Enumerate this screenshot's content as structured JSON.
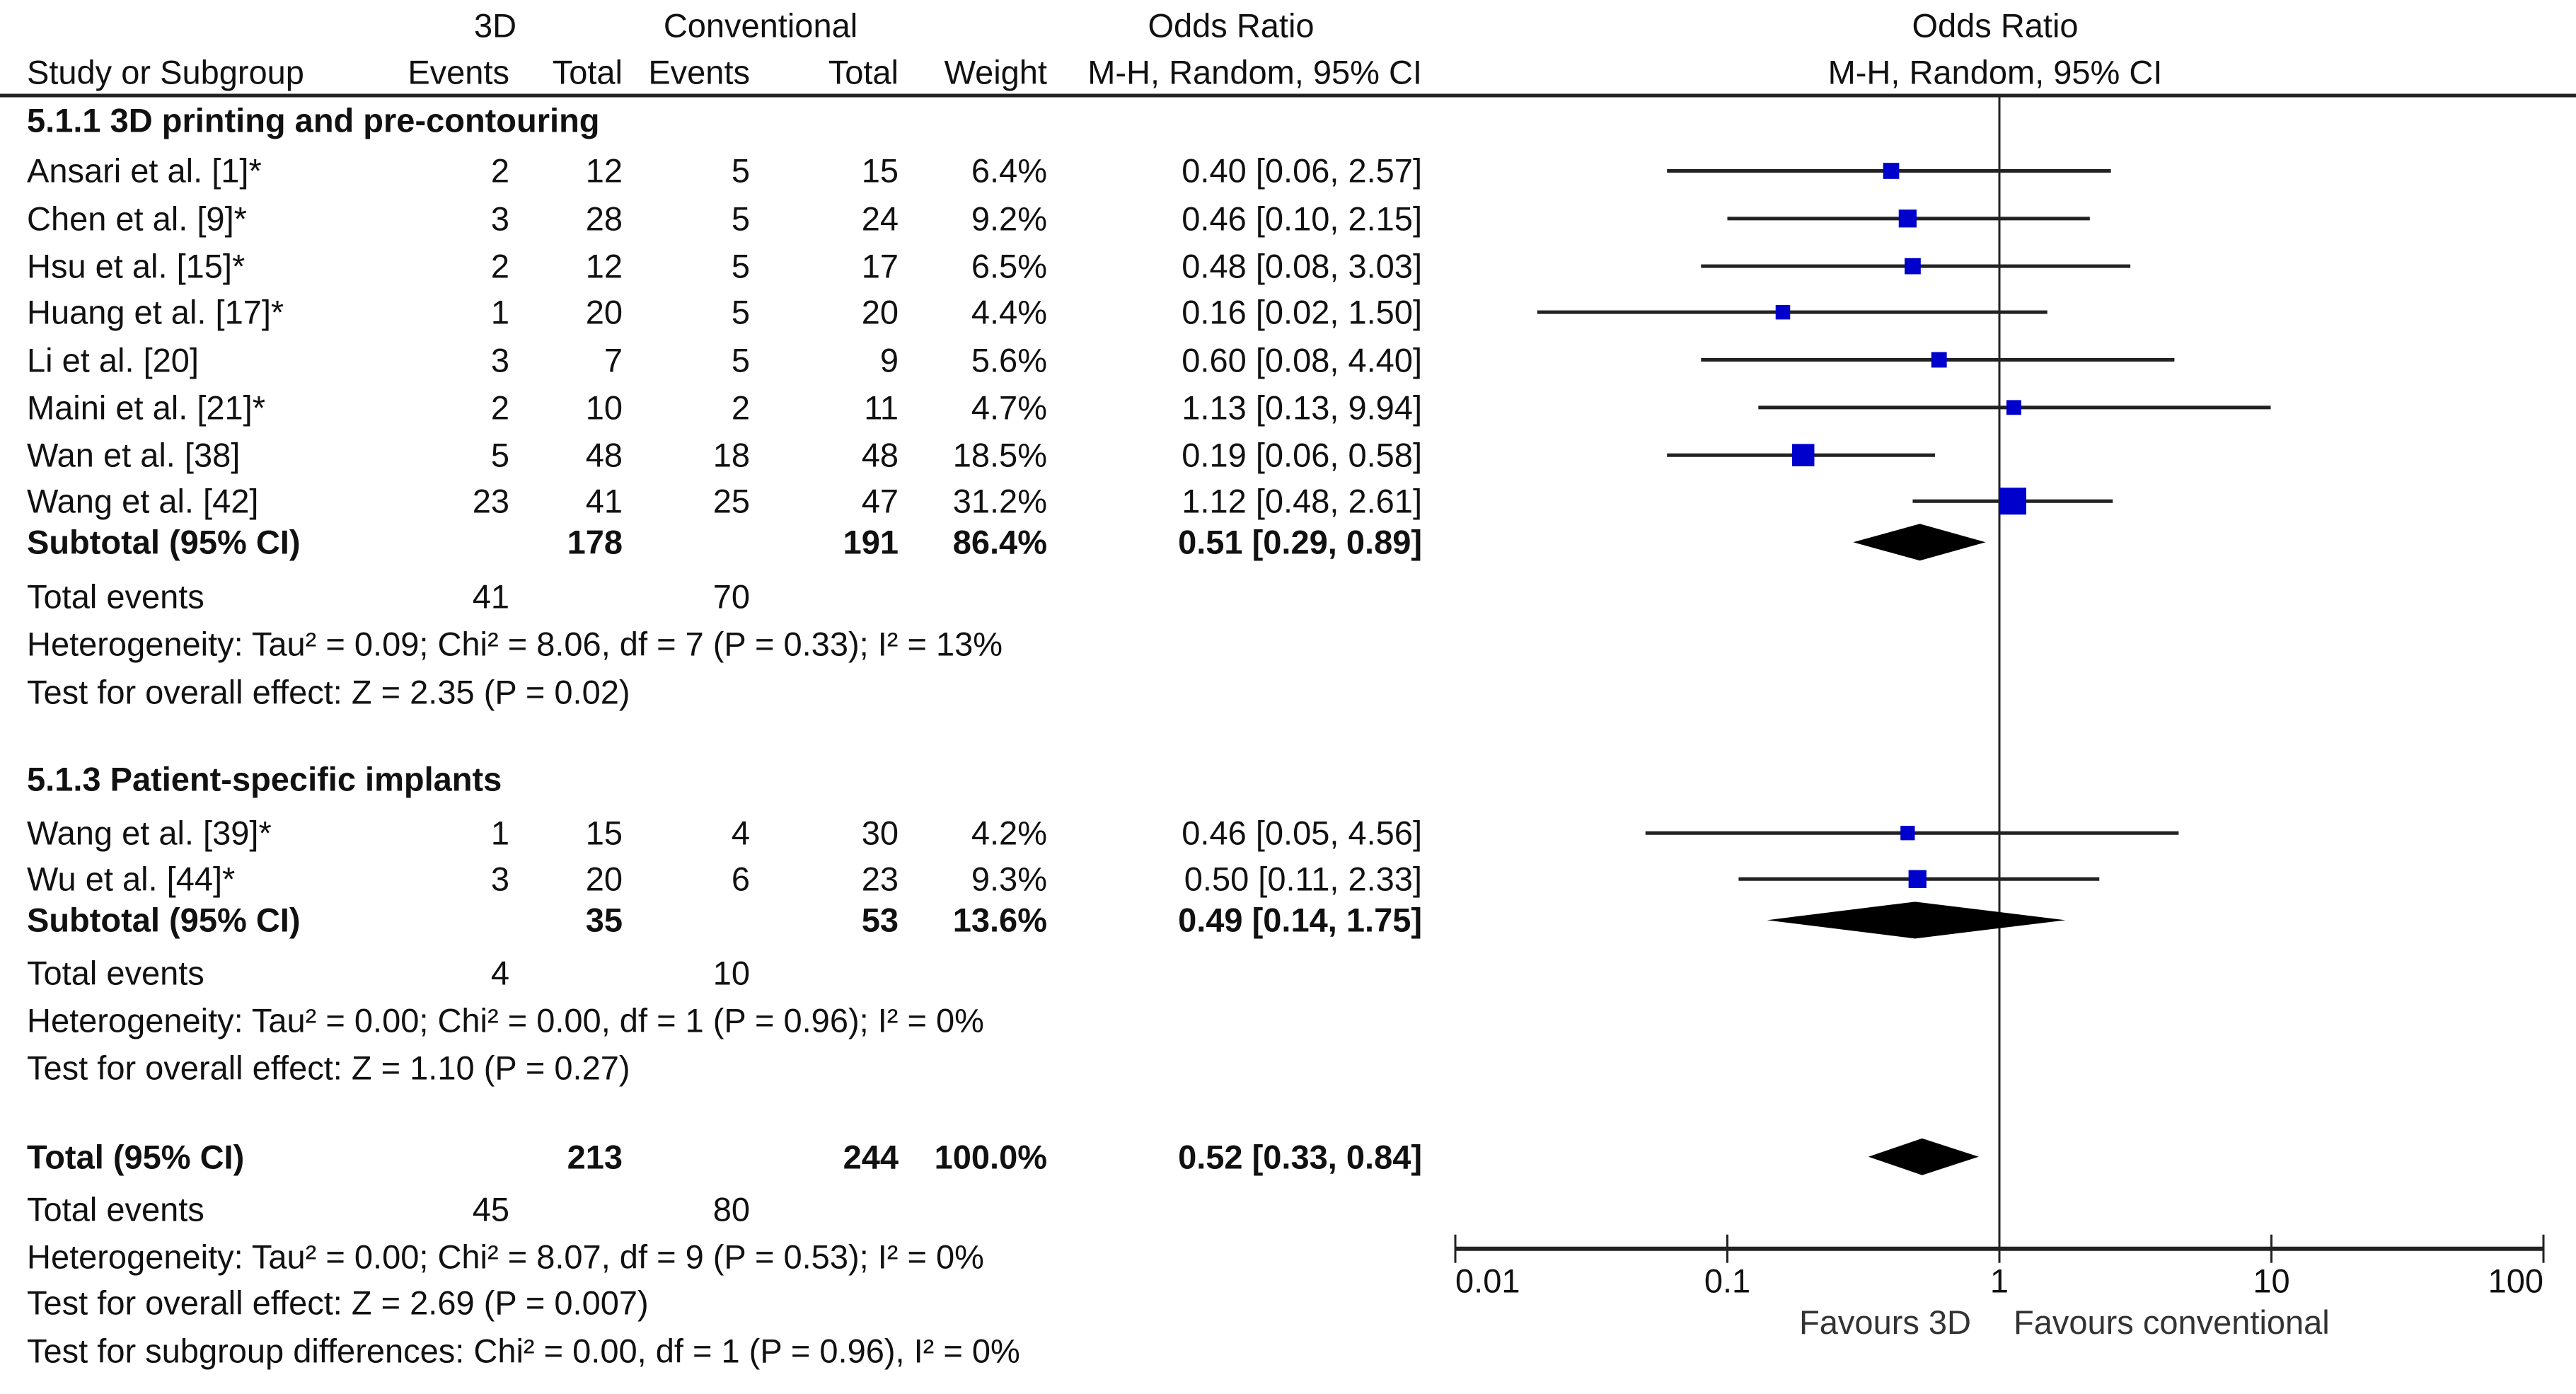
{
  "header": {
    "group1": "3D",
    "group2": "Conventional",
    "or_title": "Odds Ratio",
    "or_method": "M-H, Random, 95% CI",
    "plot_title": "Odds Ratio",
    "plot_method": "M-H, Random, 95% CI",
    "col_study": "Study or Subgroup",
    "col_events1": "Events",
    "col_total1": "Total",
    "col_events2": "Events",
    "col_total2": "Total",
    "col_weight": "Weight"
  },
  "subgroups": [
    {
      "title": "5.1.1 3D printing and pre-contouring",
      "studies": [
        {
          "name": "Ansari et al. [1]*",
          "e1": "2",
          "n1": "12",
          "e2": "5",
          "n2": "15",
          "weight": "6.4%",
          "ci_text": "0.40 [0.06, 2.57]"
        },
        {
          "name": "Chen et al. [9]*",
          "e1": "3",
          "n1": "28",
          "e2": "5",
          "n2": "24",
          "weight": "9.2%",
          "ci_text": "0.46 [0.10, 2.15]"
        },
        {
          "name": "Hsu et al. [15]*",
          "e1": "2",
          "n1": "12",
          "e2": "5",
          "n2": "17",
          "weight": "6.5%",
          "ci_text": "0.48 [0.08, 3.03]"
        },
        {
          "name": "Huang et al. [17]*",
          "e1": "1",
          "n1": "20",
          "e2": "5",
          "n2": "20",
          "weight": "4.4%",
          "ci_text": "0.16 [0.02, 1.50]"
        },
        {
          "name": "Li et al. [20]",
          "e1": "3",
          "n1": "7",
          "e2": "5",
          "n2": "9",
          "weight": "5.6%",
          "ci_text": "0.60 [0.08, 4.40]"
        },
        {
          "name": "Maini et al. [21]*",
          "e1": "2",
          "n1": "10",
          "e2": "2",
          "n2": "11",
          "weight": "4.7%",
          "ci_text": "1.13 [0.13, 9.94]"
        },
        {
          "name": "Wan et al. [38]",
          "e1": "5",
          "n1": "48",
          "e2": "18",
          "n2": "48",
          "weight": "18.5%",
          "ci_text": "0.19 [0.06, 0.58]"
        },
        {
          "name": "Wang et al. [42]",
          "e1": "23",
          "n1": "41",
          "e2": "25",
          "n2": "47",
          "weight": "31.2%",
          "ci_text": "1.12 [0.48, 2.61]"
        }
      ],
      "subtotal": {
        "label": "Subtotal (95% CI)",
        "n1": "178",
        "n2": "191",
        "weight": "86.4%",
        "ci_text": "0.51 [0.29, 0.89]"
      },
      "total_events": {
        "label": "Total events",
        "e1": "41",
        "e2": "70"
      },
      "heterogeneity": "Heterogeneity: Tau² = 0.09; Chi² = 8.06, df = 7 (P = 0.33); I² = 13%",
      "overall_effect": "Test for overall effect: Z = 2.35 (P = 0.02)"
    },
    {
      "title": "5.1.3 Patient-specific implants",
      "studies": [
        {
          "name": "Wang et al. [39]*",
          "e1": "1",
          "n1": "15",
          "e2": "4",
          "n2": "30",
          "weight": "4.2%",
          "ci_text": "0.46 [0.05, 4.56]"
        },
        {
          "name": "Wu et al. [44]*",
          "e1": "3",
          "n1": "20",
          "e2": "6",
          "n2": "23",
          "weight": "9.3%",
          "ci_text": "0.50 [0.11, 2.33]"
        }
      ],
      "subtotal": {
        "label": "Subtotal (95% CI)",
        "n1": "35",
        "n2": "53",
        "weight": "13.6%",
        "ci_text": "0.49 [0.14, 1.75]"
      },
      "total_events": {
        "label": "Total events",
        "e1": "4",
        "e2": "10"
      },
      "heterogeneity": "Heterogeneity: Tau² = 0.00; Chi² = 0.00, df = 1 (P = 0.96); I² = 0%",
      "overall_effect": "Test for overall effect: Z = 1.10 (P = 0.27)"
    }
  ],
  "total": {
    "label": "Total (95% CI)",
    "n1": "213",
    "n2": "244",
    "weight": "100.0%",
    "ci_text": "0.52 [0.33, 0.84]",
    "total_events": {
      "label": "Total events",
      "e1": "45",
      "e2": "80"
    },
    "heterogeneity": "Heterogeneity: Tau² = 0.00; Chi² = 8.07, df = 9 (P = 0.53); I² = 0%",
    "overall_effect": "Test for overall effect: Z = 2.69 (P = 0.007)",
    "subgroup_differences": "Test for subgroup differences: Chi² = 0.00, df = 1 (P = 0.96), I² = 0%"
  },
  "axis": {
    "ticks": [
      "0.01",
      "0.1",
      "1",
      "10",
      "100"
    ],
    "favours_left": "Favours 3D",
    "favours_right": "Favours conventional"
  },
  "colors": {
    "marker": "#0000cc",
    "line": "#222222",
    "diamond": "#000000"
  },
  "chart_data": {
    "type": "scatter",
    "title": "Odds Ratio M-H, Random, 95% CI",
    "xscale": "log",
    "xlim": [
      0.01,
      100
    ],
    "xticks": [
      0.01,
      0.1,
      1,
      10,
      100
    ],
    "xlabel_left": "Favours 3D",
    "xlabel_right": "Favours conventional",
    "reference_line": 1,
    "grid": false,
    "studies": [
      {
        "name": "Ansari et al. [1]*",
        "or": 0.4,
        "lo": 0.06,
        "hi": 2.57,
        "weight": 6.4
      },
      {
        "name": "Chen et al. [9]*",
        "or": 0.46,
        "lo": 0.1,
        "hi": 2.15,
        "weight": 9.2
      },
      {
        "name": "Hsu et al. [15]*",
        "or": 0.48,
        "lo": 0.08,
        "hi": 3.03,
        "weight": 6.5
      },
      {
        "name": "Huang et al. [17]*",
        "or": 0.16,
        "lo": 0.02,
        "hi": 1.5,
        "weight": 4.4
      },
      {
        "name": "Li et al. [20]",
        "or": 0.6,
        "lo": 0.08,
        "hi": 4.4,
        "weight": 5.6
      },
      {
        "name": "Maini et al. [21]*",
        "or": 1.13,
        "lo": 0.13,
        "hi": 9.94,
        "weight": 4.7
      },
      {
        "name": "Wan et al. [38]",
        "or": 0.19,
        "lo": 0.06,
        "hi": 0.58,
        "weight": 18.5
      },
      {
        "name": "Wang et al. [42]",
        "or": 1.12,
        "lo": 0.48,
        "hi": 2.61,
        "weight": 31.2
      },
      {
        "name": "Wang et al. [39]*",
        "or": 0.46,
        "lo": 0.05,
        "hi": 4.56,
        "weight": 4.2
      },
      {
        "name": "Wu et al. [44]*",
        "or": 0.5,
        "lo": 0.11,
        "hi": 2.33,
        "weight": 9.3
      }
    ],
    "diamonds": [
      {
        "name": "Subtotal 5.1.1",
        "or": 0.51,
        "lo": 0.29,
        "hi": 0.89
      },
      {
        "name": "Subtotal 5.1.3",
        "or": 0.49,
        "lo": 0.14,
        "hi": 1.75
      },
      {
        "name": "Total",
        "or": 0.52,
        "lo": 0.33,
        "hi": 0.84
      }
    ]
  }
}
